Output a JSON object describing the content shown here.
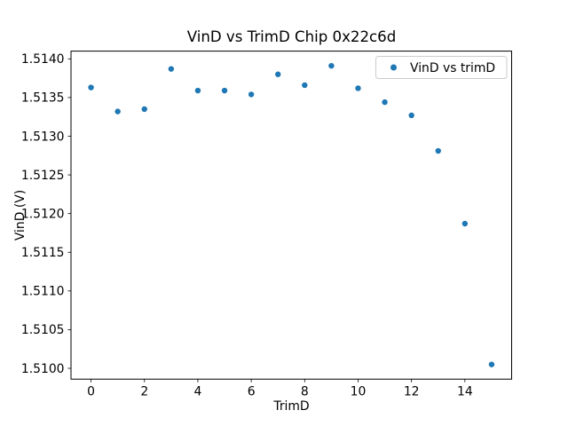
{
  "figure": {
    "background": "#ffffff",
    "text_color": "#000000",
    "spine_color": "#000000"
  },
  "chart_data": {
    "type": "scatter",
    "title": "VinD vs TrimD Chip 0x22c6d",
    "xlabel": "TrimD",
    "ylabel": "VinD (V)",
    "x": [
      0,
      1,
      2,
      3,
      4,
      5,
      6,
      7,
      8,
      9,
      10,
      11,
      12,
      13,
      14,
      15
    ],
    "y": [
      1.51363,
      1.51332,
      1.51335,
      1.51387,
      1.51359,
      1.51359,
      1.51354,
      1.5138,
      1.51366,
      1.51391,
      1.51362,
      1.51344,
      1.51327,
      1.51281,
      1.51187,
      1.51005
    ],
    "series_name": "VinD vs trimD",
    "marker_color": "#1f77b4",
    "marker_radius_px": 3.2,
    "xlim": [
      -0.75,
      15.75
    ],
    "ylim": [
      1.50986,
      1.5141
    ],
    "xticks": [
      0,
      2,
      4,
      6,
      8,
      10,
      12,
      14
    ],
    "yticks": [
      1.51,
      1.5105,
      1.511,
      1.5115,
      1.512,
      1.5125,
      1.513,
      1.5135,
      1.514
    ],
    "ytick_decimals": 4,
    "grid": false,
    "legend": {
      "label": "VinD vs trimD",
      "position": "upper right",
      "border_color": "#cccccc",
      "background": "#ffffff"
    }
  }
}
